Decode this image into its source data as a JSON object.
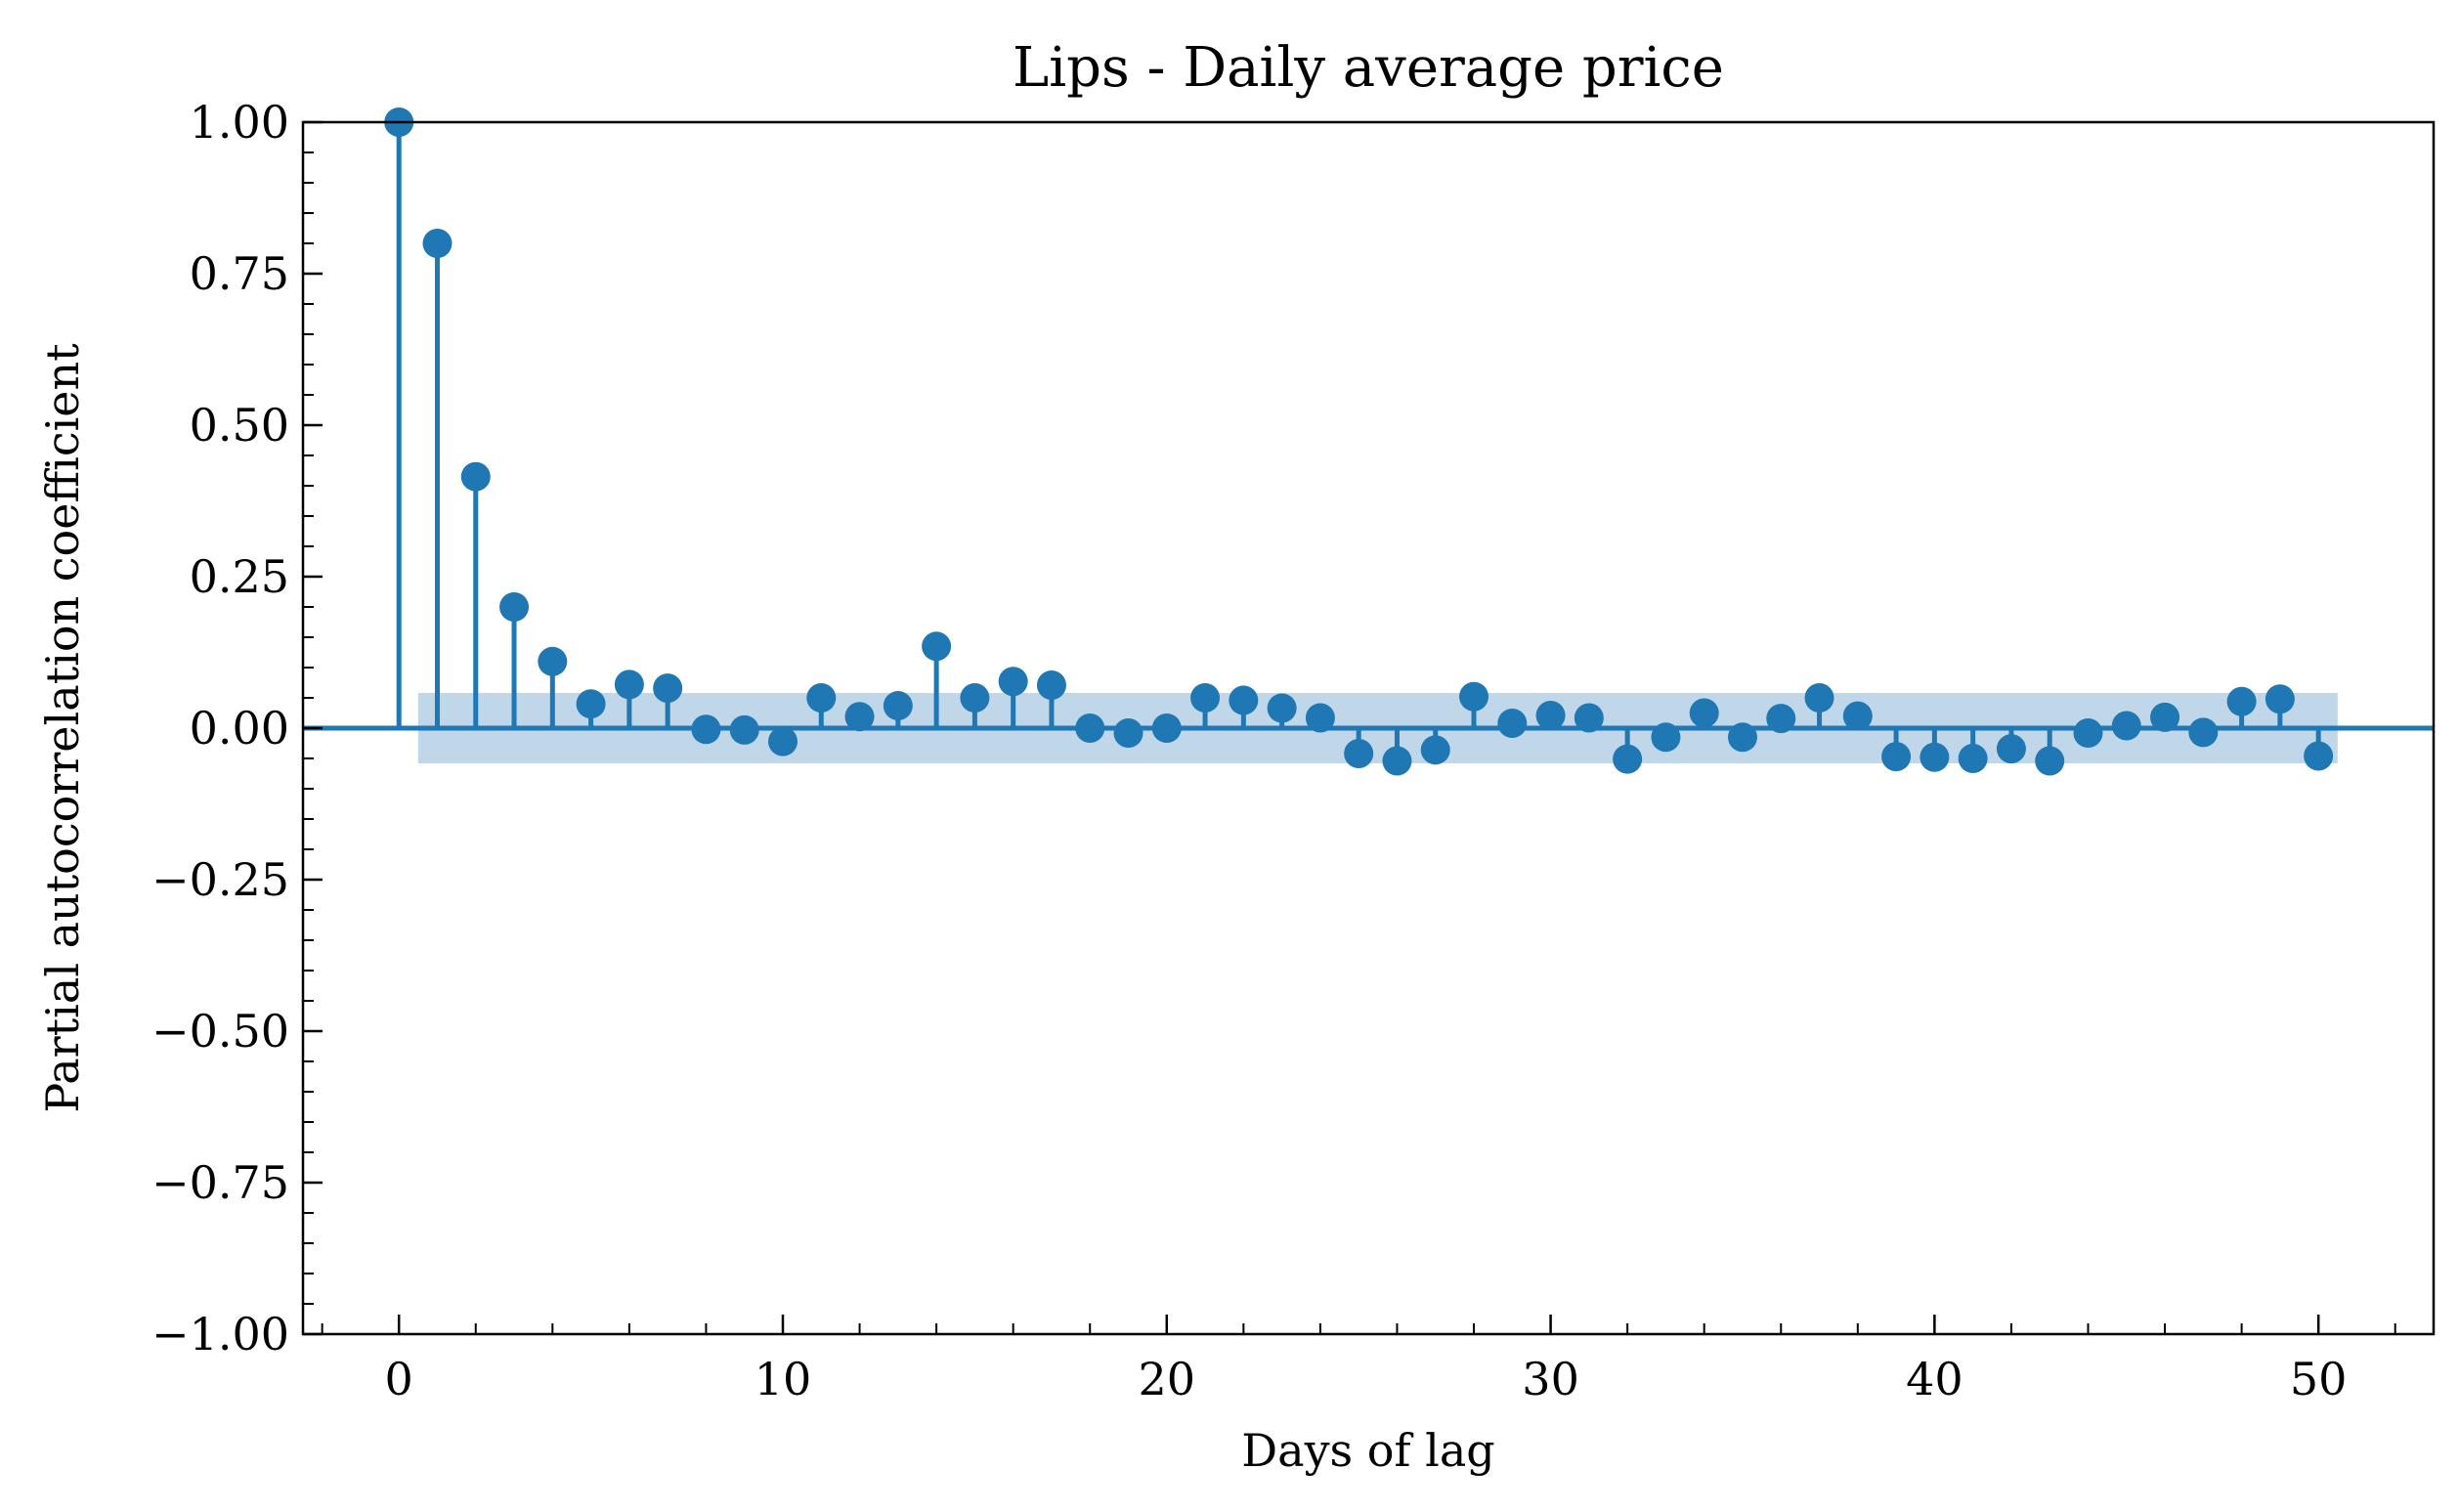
{
  "chart_data": {
    "type": "stem",
    "title": "Lips - Daily average price",
    "xlabel": "Days of lag",
    "ylabel": "Partial autocorrelation coefficient",
    "xlim": [
      -2.5,
      53
    ],
    "ylim": [
      -1.0,
      1.0
    ],
    "x_ticks": [
      0,
      10,
      20,
      30,
      40,
      50
    ],
    "x_tick_labels": [
      "0",
      "10",
      "20",
      "30",
      "40",
      "50"
    ],
    "y_ticks": [
      -1.0,
      -0.75,
      -0.5,
      -0.25,
      0.0,
      0.25,
      0.5,
      0.75,
      1.0
    ],
    "y_tick_labels": [
      "−1.00",
      "−0.75",
      "−0.50",
      "−0.25",
      "0.00",
      "0.25",
      "0.50",
      "0.75",
      "1.00"
    ],
    "grid": false,
    "confidence_band": {
      "x_range": [
        0.5,
        50.5
      ],
      "lower": -0.058,
      "upper": 0.058
    },
    "series": [
      {
        "x": [
          0,
          1,
          2,
          3,
          4,
          5,
          6,
          7,
          8,
          9,
          10,
          11,
          12,
          13,
          14,
          15,
          16,
          17,
          18,
          19,
          20,
          21,
          22,
          23,
          24,
          25,
          26,
          27,
          28,
          29,
          30,
          31,
          32,
          33,
          34,
          35,
          36,
          37,
          38,
          39,
          40,
          41,
          42,
          43,
          44,
          45,
          46,
          47,
          48,
          49,
          50
        ],
        "values": [
          1.0,
          0.8,
          0.415,
          0.2,
          0.11,
          0.04,
          0.072,
          0.066,
          -0.002,
          -0.003,
          -0.022,
          0.05,
          0.019,
          0.037,
          0.135,
          0.05,
          0.077,
          0.071,
          0.0,
          -0.008,
          0.0,
          0.05,
          0.046,
          0.033,
          0.017,
          -0.042,
          -0.054,
          -0.036,
          0.052,
          0.008,
          0.021,
          0.017,
          -0.051,
          -0.015,
          0.025,
          -0.015,
          0.016,
          0.05,
          0.02,
          -0.047,
          -0.048,
          -0.05,
          -0.034,
          -0.054,
          -0.008,
          0.004,
          0.018,
          -0.007,
          0.044,
          0.048,
          -0.046
        ]
      }
    ]
  },
  "colors": {
    "series": "#1f77b4",
    "band": "#c0d6e9",
    "axes": "#000000"
  }
}
